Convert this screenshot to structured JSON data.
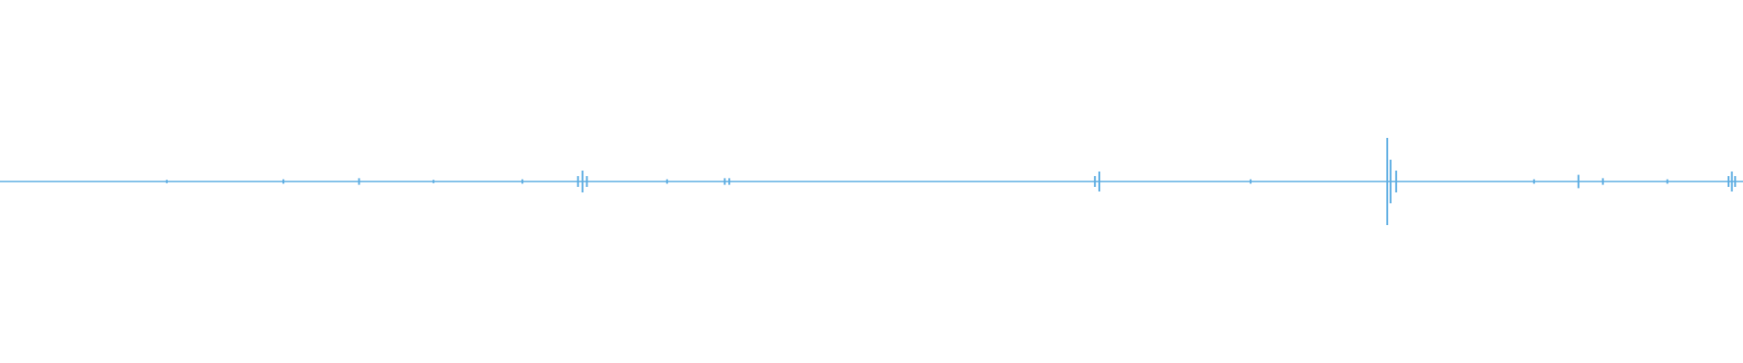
{
  "chart_data": {
    "type": "waveform",
    "color": "#5dade2",
    "xlim": [
      0,
      100
    ],
    "ylim": [
      -1,
      1
    ],
    "x": [
      9.57,
      16.26,
      20.6,
      24.87,
      29.97,
      33.16,
      33.42,
      33.67,
      38.27,
      41.58,
      41.84,
      62.82,
      63.07,
      71.75,
      79.59,
      79.78,
      80.1,
      88.01,
      90.56,
      91.96,
      95.66,
      99.17,
      99.36,
      99.55
    ],
    "values": [
      0.009,
      0.012,
      0.018,
      0.009,
      0.012,
      0.03,
      0.06,
      0.03,
      0.012,
      0.018,
      0.018,
      0.03,
      0.055,
      0.012,
      0.24,
      0.12,
      0.06,
      0.012,
      0.037,
      0.018,
      0.012,
      0.03,
      0.055,
      0.03
    ]
  }
}
